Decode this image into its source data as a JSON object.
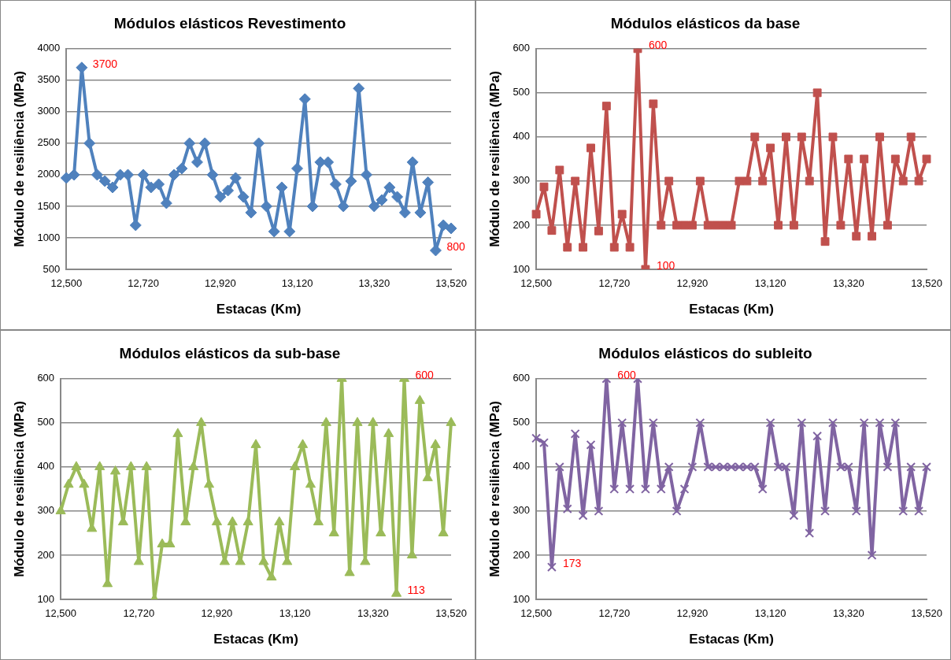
{
  "chart_data": [
    {
      "type": "line",
      "title": "Módulos elásticos Revestimento",
      "xlabel": "Estacas (Km)",
      "ylabel": "Módulo de resiliência (MPa)",
      "marker": "diamond",
      "grid": "y",
      "legend": false,
      "ylim": [
        500,
        4000
      ],
      "yticks": [
        500,
        1000,
        1500,
        2000,
        2500,
        3000,
        3500,
        4000
      ],
      "categories": [
        "12,500",
        null,
        null,
        null,
        null,
        null,
        null,
        null,
        null,
        null,
        "12,720",
        null,
        null,
        null,
        null,
        null,
        null,
        null,
        null,
        null,
        "12,920",
        null,
        null,
        null,
        null,
        null,
        null,
        null,
        null,
        null,
        "13,120",
        null,
        null,
        null,
        null,
        null,
        null,
        null,
        null,
        null,
        "13,320",
        null,
        null,
        null,
        null,
        null,
        null,
        null,
        null,
        null,
        "13,520"
      ],
      "series": [
        {
          "color": "#4f81bd",
          "values": [
            1950,
            2000,
            3700,
            2500,
            2000,
            1900,
            1800,
            2000,
            2000,
            1200,
            2000,
            1800,
            1850,
            1550,
            2000,
            2100,
            2500,
            2200,
            2500,
            2000,
            1650,
            1750,
            1950,
            1650,
            1400,
            2500,
            1500,
            1100,
            1800,
            1100,
            2100,
            3200,
            1500,
            2200,
            2200,
            1850,
            1500,
            1900,
            3370,
            2000,
            1500,
            1600,
            1800,
            1650,
            1400,
            2200,
            1400,
            1880,
            800,
            1200,
            1150
          ],
          "value_labels": [
            null,
            null,
            "3700",
            null,
            null,
            null,
            null,
            null,
            null,
            null,
            null,
            null,
            null,
            null,
            null,
            null,
            null,
            null,
            null,
            null,
            null,
            null,
            null,
            null,
            null,
            null,
            null,
            null,
            null,
            null,
            null,
            null,
            null,
            null,
            null,
            null,
            null,
            null,
            null,
            null,
            null,
            null,
            null,
            null,
            null,
            null,
            null,
            null,
            "800",
            null,
            null
          ]
        }
      ]
    },
    {
      "type": "line",
      "title": "Módulos elásticos da base",
      "xlabel": "Estacas (Km)",
      "ylabel": "Módulo de resiliência (MPa)",
      "marker": "square",
      "grid": "y",
      "legend": false,
      "ylim": [
        100,
        600
      ],
      "yticks": [
        100,
        200,
        300,
        400,
        500,
        600
      ],
      "categories": [
        "12,500",
        null,
        null,
        null,
        null,
        null,
        null,
        null,
        null,
        null,
        "12,720",
        null,
        null,
        null,
        null,
        null,
        null,
        null,
        null,
        null,
        "12,920",
        null,
        null,
        null,
        null,
        null,
        null,
        null,
        null,
        null,
        "13,120",
        null,
        null,
        null,
        null,
        null,
        null,
        null,
        null,
        null,
        "13,320",
        null,
        null,
        null,
        null,
        null,
        null,
        null,
        null,
        null,
        "13,520"
      ],
      "series": [
        {
          "color": "#c0504d",
          "values": [
            225,
            287,
            188,
            325,
            150,
            300,
            150,
            375,
            187,
            470,
            150,
            225,
            150,
            600,
            100,
            475,
            200,
            300,
            200,
            200,
            200,
            300,
            200,
            200,
            200,
            200,
            300,
            300,
            400,
            300,
            375,
            200,
            400,
            200,
            400,
            300,
            500,
            163,
            400,
            200,
            350,
            175,
            350,
            175,
            400,
            200,
            350,
            300,
            400,
            300,
            350
          ],
          "value_labels": [
            null,
            null,
            null,
            null,
            null,
            null,
            null,
            null,
            null,
            null,
            null,
            null,
            null,
            "600",
            "100",
            null,
            null,
            null,
            null,
            null,
            null,
            null,
            null,
            null,
            null,
            null,
            null,
            null,
            null,
            null,
            null,
            null,
            null,
            null,
            null,
            null,
            null,
            null,
            null,
            null,
            null,
            null,
            null,
            null,
            null,
            null,
            null,
            null,
            null,
            null,
            null
          ]
        }
      ]
    },
    {
      "type": "line",
      "title": "Módulos elásticos da sub-base",
      "xlabel": "Estacas (Km)",
      "ylabel": "Módulo de resiliência (MPa)",
      "marker": "triangle",
      "grid": "y",
      "legend": false,
      "ylim": [
        100,
        600
      ],
      "yticks": [
        100,
        200,
        300,
        400,
        500,
        600
      ],
      "categories": [
        "12,500",
        null,
        null,
        null,
        null,
        null,
        null,
        null,
        null,
        null,
        "12,720",
        null,
        null,
        null,
        null,
        null,
        null,
        null,
        null,
        null,
        "12,920",
        null,
        null,
        null,
        null,
        null,
        null,
        null,
        null,
        null,
        "13,120",
        null,
        null,
        null,
        null,
        null,
        null,
        null,
        null,
        null,
        "13,320",
        null,
        null,
        null,
        null,
        null,
        null,
        null,
        null,
        null,
        "13,520"
      ],
      "series": [
        {
          "color": "#9bbb59",
          "values": [
            300,
            360,
            400,
            360,
            260,
            400,
            135,
            390,
            275,
            400,
            185,
            400,
            100,
            225,
            225,
            475,
            275,
            400,
            500,
            360,
            275,
            185,
            275,
            185,
            275,
            450,
            185,
            150,
            275,
            185,
            400,
            450,
            360,
            275,
            500,
            250,
            600,
            160,
            500,
            185,
            500,
            250,
            475,
            113,
            600,
            200,
            550,
            375,
            450,
            250,
            500
          ],
          "value_labels": [
            null,
            null,
            null,
            null,
            null,
            null,
            null,
            null,
            null,
            null,
            null,
            null,
            null,
            null,
            null,
            null,
            null,
            null,
            null,
            null,
            null,
            null,
            null,
            null,
            null,
            null,
            null,
            null,
            null,
            null,
            null,
            null,
            null,
            null,
            null,
            null,
            null,
            null,
            null,
            null,
            null,
            null,
            null,
            "113",
            "600",
            null,
            null,
            null,
            null,
            null,
            null
          ]
        }
      ]
    },
    {
      "type": "line",
      "title": "Módulos elásticos do subleito",
      "xlabel": "Estacas (Km)",
      "ylabel": "Módulo de resiliência (MPa)",
      "marker": "cross",
      "grid": "y",
      "legend": false,
      "ylim": [
        100,
        600
      ],
      "yticks": [
        100,
        200,
        300,
        400,
        500,
        600
      ],
      "categories": [
        "12,500",
        null,
        null,
        null,
        null,
        null,
        null,
        null,
        null,
        null,
        "12,720",
        null,
        null,
        null,
        null,
        null,
        null,
        null,
        null,
        null,
        "12,920",
        null,
        null,
        null,
        null,
        null,
        null,
        null,
        null,
        null,
        "13,120",
        null,
        null,
        null,
        null,
        null,
        null,
        null,
        null,
        null,
        "13,320",
        null,
        null,
        null,
        null,
        null,
        null,
        null,
        null,
        null,
        "13,520"
      ],
      "series": [
        {
          "color": "#8064a2",
          "values": [
            465,
            455,
            173,
            400,
            305,
            475,
            290,
            450,
            300,
            600,
            350,
            500,
            350,
            600,
            350,
            500,
            350,
            400,
            300,
            350,
            400,
            500,
            400,
            400,
            400,
            400,
            400,
            400,
            400,
            350,
            500,
            400,
            400,
            290,
            500,
            250,
            470,
            300,
            500,
            400,
            400,
            300,
            500,
            200,
            500,
            400,
            500,
            300,
            400,
            300,
            400
          ],
          "value_labels": [
            null,
            null,
            "173",
            null,
            null,
            null,
            null,
            null,
            null,
            "600",
            null,
            null,
            null,
            null,
            null,
            null,
            null,
            null,
            null,
            null,
            null,
            null,
            null,
            null,
            null,
            null,
            null,
            null,
            null,
            null,
            null,
            null,
            null,
            null,
            null,
            null,
            null,
            null,
            null,
            null,
            null,
            null,
            null,
            null,
            null,
            null,
            null,
            null,
            null,
            null,
            null
          ]
        }
      ]
    }
  ]
}
